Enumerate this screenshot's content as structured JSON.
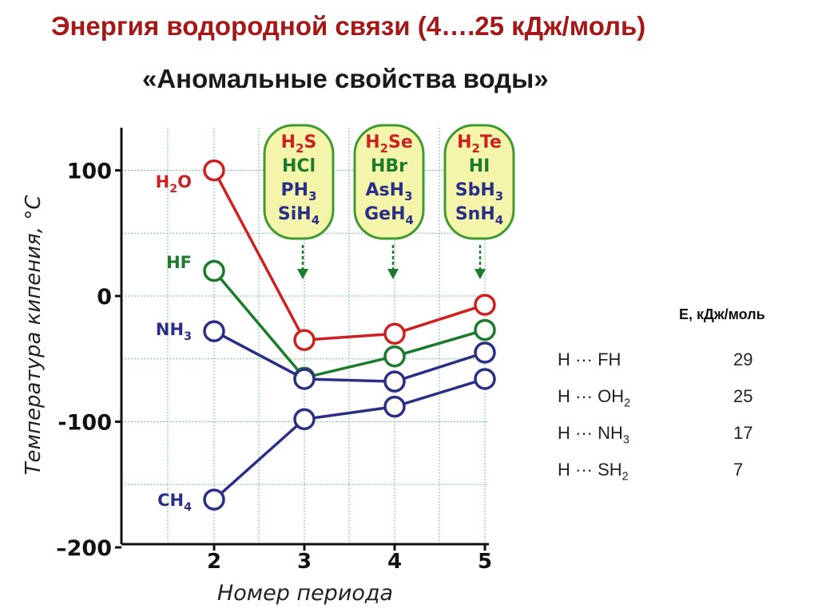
{
  "title": "Энергия водородной связи (4….25 кДж/моль)",
  "subtitle": "«Аномальные свойства воды»",
  "colors": {
    "red": "#cc2121",
    "green": "#1c7a2c",
    "blue": "#2a2f86",
    "box_fill": "#f4f5ab",
    "box_border": "#3f9a30",
    "grid": "#6bc48a",
    "title": "#a51818"
  },
  "chart_data": {
    "type": "line",
    "xlabel": "Номер периода",
    "ylabel": "Температура кипения, °С",
    "x": [
      2,
      3,
      4,
      5
    ],
    "xticks": [
      "2",
      "3",
      "4",
      "5"
    ],
    "yticks": [
      "100",
      "0",
      "-100",
      "–200"
    ],
    "ylim": [
      -200,
      100
    ],
    "grid": true,
    "series": [
      {
        "name": "H2O",
        "color": "#cc2121",
        "values": [
          100,
          -35,
          -30,
          -7
        ],
        "label_main": "H",
        "label_sub": "2",
        "label_tail": "O"
      },
      {
        "name": "HF",
        "color": "#1c7a2c",
        "values": [
          20,
          -65,
          -48,
          -27
        ],
        "label_main": "HF",
        "label_sub": "",
        "label_tail": ""
      },
      {
        "name": "NH3",
        "color": "#2a2f86",
        "values": [
          -28,
          -66,
          -68,
          -45
        ],
        "label_main": "NH",
        "label_sub": "3",
        "label_tail": ""
      },
      {
        "name": "CH4",
        "color": "#2a2f86",
        "values": [
          -162,
          -98,
          -88,
          -66
        ],
        "label_main": "CH",
        "label_sub": "4",
        "label_tail": ""
      }
    ],
    "boxes": [
      {
        "x": 3,
        "lines": [
          {
            "main": "H",
            "sub": "2",
            "tail": "S",
            "color": "#cc2121"
          },
          {
            "main": "HCl",
            "sub": "",
            "tail": "",
            "color": "#1c7a2c"
          },
          {
            "main": "PH",
            "sub": "3",
            "tail": "",
            "color": "#2a2f86"
          },
          {
            "main": "SiH",
            "sub": "4",
            "tail": "",
            "color": "#2a2f86"
          }
        ]
      },
      {
        "x": 4,
        "lines": [
          {
            "main": "H",
            "sub": "2",
            "tail": "Se",
            "color": "#cc2121"
          },
          {
            "main": "HBr",
            "sub": "",
            "tail": "",
            "color": "#1c7a2c"
          },
          {
            "main": "AsH",
            "sub": "3",
            "tail": "",
            "color": "#2a2f86"
          },
          {
            "main": "GeH",
            "sub": "4",
            "tail": "",
            "color": "#2a2f86"
          }
        ]
      },
      {
        "x": 5,
        "lines": [
          {
            "main": "H",
            "sub": "2",
            "tail": "Te",
            "color": "#cc2121"
          },
          {
            "main": "HI",
            "sub": "",
            "tail": "",
            "color": "#1c7a2c"
          },
          {
            "main": "SbH",
            "sub": "3",
            "tail": "",
            "color": "#2a2f86"
          },
          {
            "main": "SnH",
            "sub": "4",
            "tail": "",
            "color": "#2a2f86"
          }
        ]
      }
    ]
  },
  "energy_table": {
    "header": "Е, кДж/моль",
    "rows": [
      {
        "bond_main": "H ··· FH",
        "bond_sub": "",
        "value": "29"
      },
      {
        "bond_main": "H ··· OH",
        "bond_sub": "2",
        "value": "25"
      },
      {
        "bond_main": "H ··· NH",
        "bond_sub": "3",
        "value": "17"
      },
      {
        "bond_main": "H ··· SH",
        "bond_sub": "2",
        "value": "7"
      }
    ]
  }
}
